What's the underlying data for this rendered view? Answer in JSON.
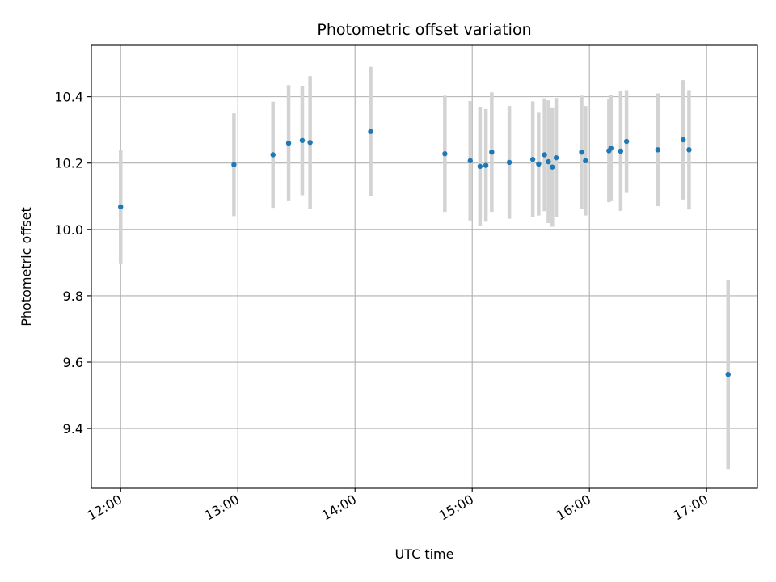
{
  "chart_data": {
    "type": "scatter",
    "title": "Photometric offset variation",
    "xlabel": "UTC time",
    "ylabel": "Photometric offset",
    "xlim": [
      "11:45",
      "17:26"
    ],
    "ylim": [
      9.22,
      10.555
    ],
    "xticks": [
      "12:00",
      "13:00",
      "14:00",
      "15:00",
      "16:00",
      "17:00"
    ],
    "yticks": [
      9.4,
      9.6,
      9.8,
      10.0,
      10.2,
      10.4
    ],
    "ytick_labels": [
      "9.4",
      "9.6",
      "9.8",
      "10.0",
      "10.2",
      "10.4"
    ],
    "grid": true,
    "colors": {
      "point": "#1f77b4",
      "errorbar": "#d3d3d3",
      "grid": "#b0b0b0"
    },
    "points": [
      {
        "t": "12:00",
        "y": 10.068,
        "err": 0.17
      },
      {
        "t": "12:58",
        "y": 10.195,
        "err": 0.155
      },
      {
        "t": "13:18",
        "y": 10.225,
        "err": 0.16
      },
      {
        "t": "13:26",
        "y": 10.26,
        "err": 0.175
      },
      {
        "t": "13:33",
        "y": 10.268,
        "err": 0.165
      },
      {
        "t": "13:37",
        "y": 10.262,
        "err": 0.2
      },
      {
        "t": "14:08",
        "y": 10.295,
        "err": 0.195
      },
      {
        "t": "14:46",
        "y": 10.228,
        "err": 0.175
      },
      {
        "t": "14:59",
        "y": 10.207,
        "err": 0.18
      },
      {
        "t": "15:04",
        "y": 10.19,
        "err": 0.18
      },
      {
        "t": "15:07",
        "y": 10.193,
        "err": 0.17
      },
      {
        "t": "15:10",
        "y": 10.233,
        "err": 0.18
      },
      {
        "t": "15:19",
        "y": 10.202,
        "err": 0.17
      },
      {
        "t": "15:31",
        "y": 10.211,
        "err": 0.175
      },
      {
        "t": "15:34",
        "y": 10.197,
        "err": 0.155
      },
      {
        "t": "15:37",
        "y": 10.225,
        "err": 0.17
      },
      {
        "t": "15:39",
        "y": 10.204,
        "err": 0.185
      },
      {
        "t": "15:41",
        "y": 10.188,
        "err": 0.18
      },
      {
        "t": "15:43",
        "y": 10.216,
        "err": 0.18
      },
      {
        "t": "15:56",
        "y": 10.233,
        "err": 0.17
      },
      {
        "t": "15:58",
        "y": 10.207,
        "err": 0.165
      },
      {
        "t": "16:10",
        "y": 10.237,
        "err": 0.155
      },
      {
        "t": "16:11",
        "y": 10.245,
        "err": 0.16
      },
      {
        "t": "16:16",
        "y": 10.236,
        "err": 0.18
      },
      {
        "t": "16:19",
        "y": 10.265,
        "err": 0.155
      },
      {
        "t": "16:35",
        "y": 10.24,
        "err": 0.17
      },
      {
        "t": "16:48",
        "y": 10.27,
        "err": 0.18
      },
      {
        "t": "16:51",
        "y": 10.24,
        "err": 0.18
      },
      {
        "t": "17:11",
        "y": 9.563,
        "err": 0.285
      }
    ]
  }
}
